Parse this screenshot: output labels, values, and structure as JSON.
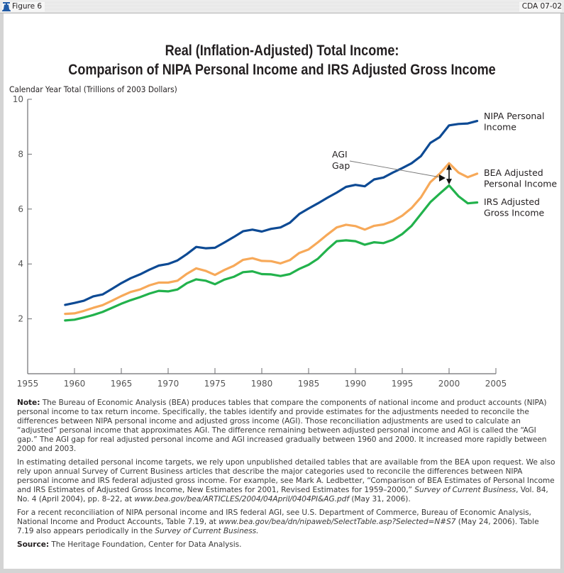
{
  "header": {
    "figure_label": "Figure 6",
    "code": "CDA 07-02",
    "icon": "liberty-bell-icon"
  },
  "chart_data": {
    "type": "line",
    "title": "Real (Inflation-Adjusted) Total Income:",
    "subtitle": "Comparison of NIPA Personal Income and IRS Adjusted Gross Income",
    "xlabel": "",
    "ylabel": "Calendar Year Total (Trillions of 2003 Dollars)",
    "xlim": [
      1955,
      2005
    ],
    "ylim": [
      0,
      10
    ],
    "x_ticks": [
      1955,
      1960,
      1965,
      1970,
      1975,
      1980,
      1985,
      1990,
      1995,
      2000,
      2005
    ],
    "y_ticks": [
      2,
      4,
      6,
      8,
      10
    ],
    "grid": false,
    "legend": "inline-right",
    "x": [
      1959,
      1960,
      1961,
      1962,
      1963,
      1964,
      1965,
      1966,
      1967,
      1968,
      1969,
      1970,
      1971,
      1972,
      1973,
      1974,
      1975,
      1976,
      1977,
      1978,
      1979,
      1980,
      1981,
      1982,
      1983,
      1984,
      1985,
      1986,
      1987,
      1988,
      1989,
      1990,
      1991,
      1992,
      1993,
      1994,
      1995,
      1996,
      1997,
      1998,
      1999,
      2000,
      2001,
      2002,
      2003
    ],
    "series": [
      {
        "name": "NIPA Personal Income",
        "label_lines": [
          "NIPA Personal",
          "Income"
        ],
        "color": "#0d4a94",
        "values": [
          2.51,
          2.58,
          2.66,
          2.82,
          2.89,
          3.09,
          3.3,
          3.48,
          3.62,
          3.79,
          3.94,
          4.0,
          4.13,
          4.36,
          4.62,
          4.57,
          4.59,
          4.78,
          4.98,
          5.19,
          5.25,
          5.18,
          5.28,
          5.33,
          5.5,
          5.82,
          6.02,
          6.21,
          6.41,
          6.6,
          6.81,
          6.88,
          6.83,
          7.08,
          7.15,
          7.33,
          7.49,
          7.67,
          7.93,
          8.41,
          8.62,
          9.05,
          9.1,
          9.12,
          9.21
        ]
      },
      {
        "name": "BEA Adjusted Personal Income",
        "label_lines": [
          "BEA Adjusted",
          "Personal Income"
        ],
        "color": "#f7a959",
        "values": [
          2.18,
          2.2,
          2.29,
          2.4,
          2.5,
          2.66,
          2.83,
          2.98,
          3.07,
          3.22,
          3.32,
          3.32,
          3.39,
          3.64,
          3.84,
          3.75,
          3.6,
          3.78,
          3.93,
          4.15,
          4.21,
          4.11,
          4.1,
          4.02,
          4.14,
          4.4,
          4.53,
          4.79,
          5.07,
          5.33,
          5.43,
          5.38,
          5.25,
          5.39,
          5.44,
          5.56,
          5.76,
          6.04,
          6.43,
          6.98,
          7.29,
          7.67,
          7.33,
          7.16,
          7.29
        ]
      },
      {
        "name": "IRS Adjusted Gross Income",
        "label_lines": [
          "IRS Adjusted",
          "Gross Income"
        ],
        "color": "#22b24c",
        "values": [
          1.94,
          1.97,
          2.05,
          2.14,
          2.25,
          2.4,
          2.55,
          2.68,
          2.79,
          2.92,
          3.02,
          3.0,
          3.07,
          3.3,
          3.44,
          3.39,
          3.26,
          3.43,
          3.53,
          3.7,
          3.73,
          3.63,
          3.62,
          3.56,
          3.63,
          3.82,
          3.97,
          4.19,
          4.53,
          4.83,
          4.86,
          4.83,
          4.7,
          4.79,
          4.76,
          4.88,
          5.09,
          5.39,
          5.82,
          6.25,
          6.56,
          6.86,
          6.47,
          6.21,
          6.24
        ]
      }
    ],
    "annotations": [
      {
        "text_lines": [
          "AGI",
          "Gap"
        ],
        "points_to_year": 2000,
        "description": "Double-headed arrow between BEA Adjusted Personal Income and IRS Adjusted Gross Income at 2000"
      }
    ]
  },
  "notes": {
    "note_label": "Note:",
    "note_text": " The Bureau of Economic Analysis (BEA) produces tables that compare the components of national income and product accounts (NIPA) personal income to tax return income. Specifically, the tables identify and provide estimates for the adjustments needed to reconcile the differences between NIPA personal income and adjusted gross income (AGI). Those reconciliation adjustments are used to calculate an “adjusted” personal income that approximates AGI. The difference remaining between adjusted personal income and AGI is called the “AGI gap.” The AGI gap for real adjusted personal income and AGI increased gradually between 1960 and 2000. It increased more rapidly between 2000 and 2003.",
    "para2_a": "In estimating detailed personal income targets, we rely upon unpublished detailed tables that are available from the BEA upon request. We also rely upon annual Survey of Current Business articles that describe the major categories used to reconcile the differences between NIPA personal income and IRS federal adjusted gross income. For example, see Mark A. Ledbetter, “Comparison of BEA Estimates of Personal Income and IRS Estimates of Adjusted Gross Income, New Estimates for 2001, Revised Estimates for 1959–2000,” ",
    "para2_italic1": "Survey of Current Business",
    "para2_b": ", Vol. 84, No. 4 (April 2004), pp. 8–22, at ",
    "para2_url": "www.bea.gov/bea/ARTICLES/2004/04April/0404PI&AG.pdf",
    "para2_c": " (May 31, 2006).",
    "para3_a": "For a recent reconciliation of NIPA personal income and IRS federal AGI, see U.S. Department of Commerce, Bureau of Economic Analysis, National Income and Product Accounts, Table 7.19, at ",
    "para3_url": "www.bea.gov/bea/dn/nipaweb/SelectTable.asp?Selected=N#S7",
    "para3_b": " (May 24, 2006). Table 7.19 also appears periodically in the ",
    "para3_italic": "Survey of Current Business.",
    "source_label": "Source:",
    "source_text": " The Heritage Foundation, Center for Data Analysis."
  }
}
